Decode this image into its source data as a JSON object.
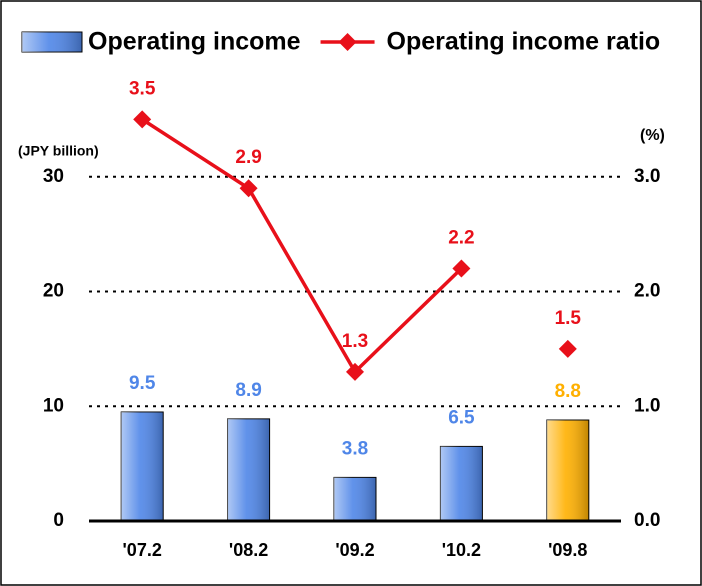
{
  "chart_data": {
    "type": "bar",
    "categories": [
      "'07.2",
      "'08.2",
      "'09.2",
      "'10.2",
      "'09.8"
    ],
    "series": [
      {
        "name": "Operating income",
        "type": "bar",
        "colors": [
          "#4f86e8",
          "#4f86e8",
          "#4f86e8",
          "#4f86e8",
          "#ffb000"
        ],
        "values": [
          9.5,
          8.9,
          3.8,
          6.5,
          8.8
        ]
      },
      {
        "name": "Operating income ratio",
        "type": "line",
        "axis": "y2",
        "color": "#e8101a",
        "values": [
          3.5,
          2.9,
          1.3,
          2.2,
          null
        ]
      },
      {
        "type": "line",
        "axis": "y2",
        "color": "#e8101a",
        "values": [
          null,
          null,
          null,
          null,
          1.5
        ]
      }
    ],
    "ylabel": "(JPY billion)",
    "y2label": "(%)",
    "ylim": [
      0,
      40
    ],
    "yticks": [
      0,
      10,
      20,
      30
    ],
    "y2lim": [
      0,
      4
    ],
    "y2ticks": [
      {
        "value": 0,
        "label": "0.0"
      },
      {
        "value": 1,
        "label": "1.0"
      },
      {
        "value": 2,
        "label": "2.0"
      },
      {
        "value": 3,
        "label": "3.0"
      }
    ],
    "grid": true
  }
}
